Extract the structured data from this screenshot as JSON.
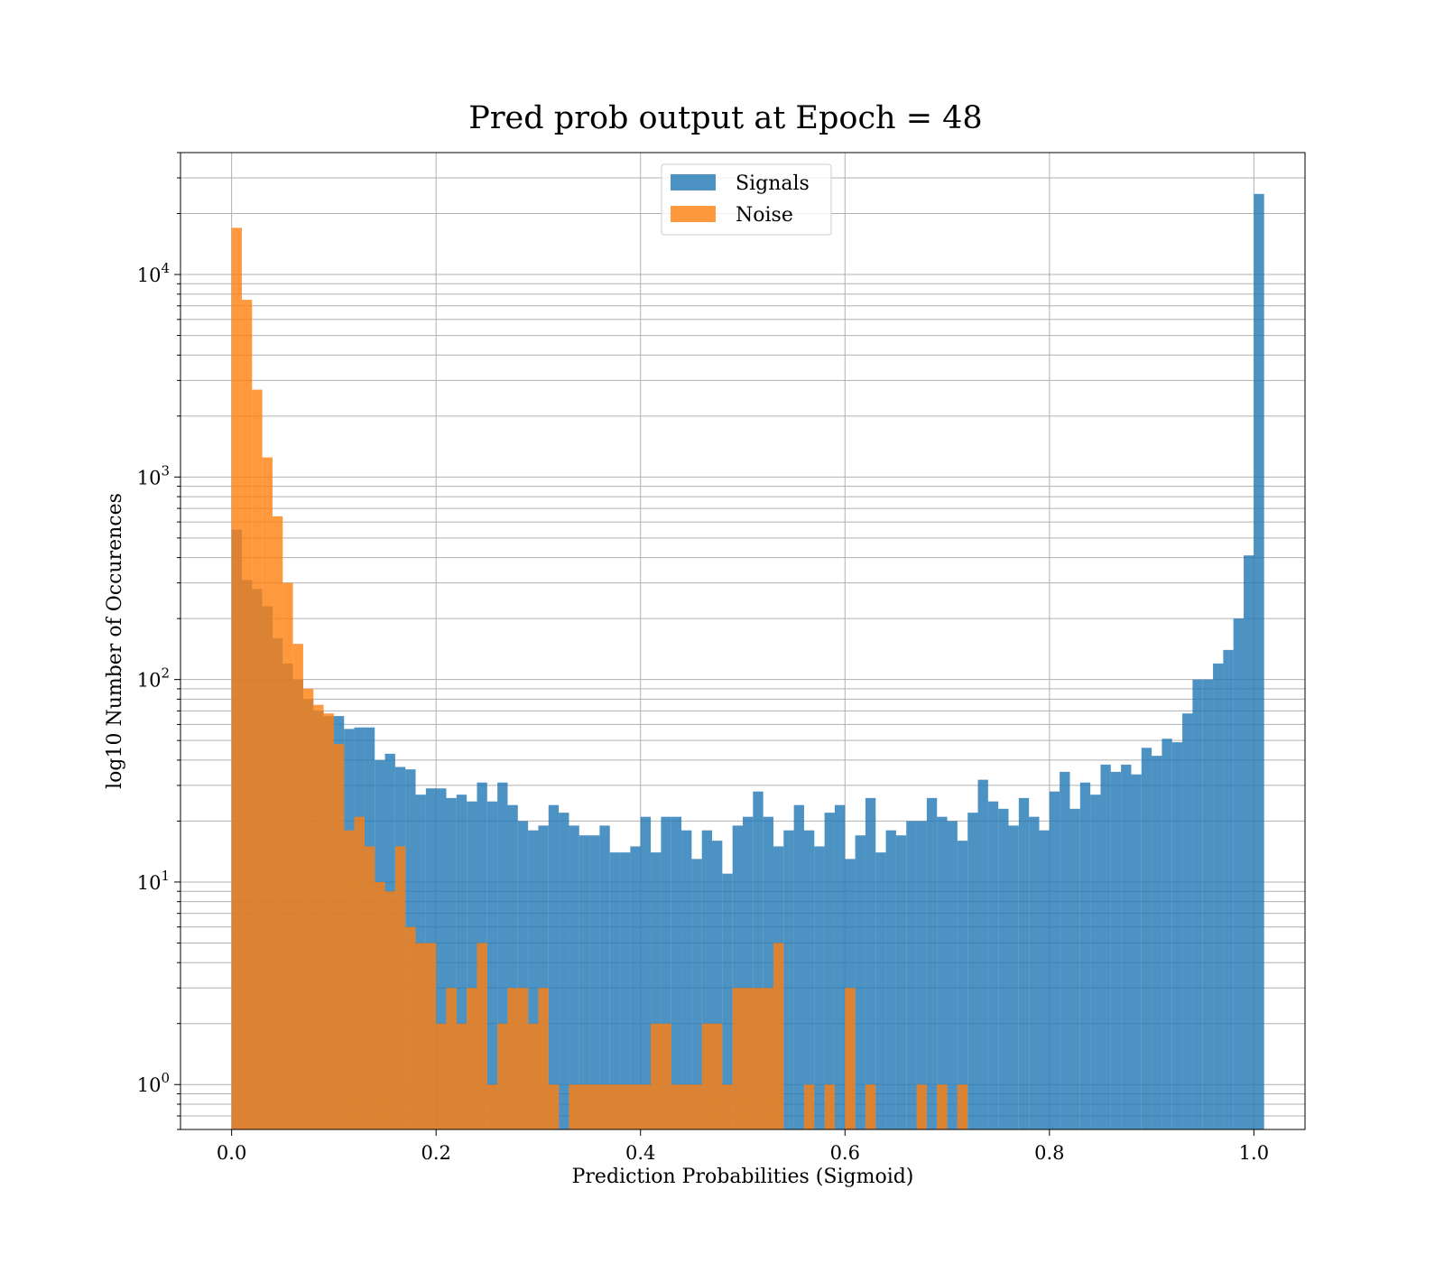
{
  "chart_data": {
    "type": "bar",
    "title": "Pred prob output at Epoch = 48",
    "xlabel": "Prediction Probabilities (Sigmoid)",
    "ylabel": "log10 Number of Occurences",
    "xlim": [
      -0.05,
      1.05
    ],
    "ylim": [
      0.6,
      40000
    ],
    "yscale": "log",
    "grid": true,
    "legend_position": "top-center",
    "x_ticks": [
      0.0,
      0.2,
      0.4,
      0.6,
      0.8,
      1.0
    ],
    "x_tick_labels": [
      "0.0",
      "0.2",
      "0.4",
      "0.6",
      "0.8",
      "1.0"
    ],
    "y_ticks": [
      1,
      10,
      100,
      1000,
      10000
    ],
    "y_tick_labels": [
      {
        "base": "10",
        "exp": "0"
      },
      {
        "base": "10",
        "exp": "1"
      },
      {
        "base": "10",
        "exp": "2"
      },
      {
        "base": "10",
        "exp": "3"
      },
      {
        "base": "10",
        "exp": "4"
      }
    ],
    "bin_start": 0.0,
    "bin_width": 0.01,
    "series": [
      {
        "name": "Signals",
        "color": "#1f77b4",
        "opacity": 0.8,
        "values": [
          550,
          310,
          280,
          230,
          160,
          120,
          100,
          80,
          70,
          66,
          66,
          57,
          58,
          58,
          40,
          43,
          37,
          36,
          27,
          29,
          29,
          26,
          27,
          25,
          31,
          25,
          31,
          24,
          20,
          18,
          19,
          24,
          22,
          19,
          17,
          17,
          19,
          14,
          14,
          15,
          21,
          14,
          21,
          21,
          18,
          13,
          18,
          16,
          11,
          19,
          21,
          28,
          21,
          15,
          18,
          24,
          18,
          15,
          22,
          24,
          13,
          17,
          26,
          14,
          18,
          17,
          20,
          20,
          26,
          21,
          20,
          16,
          22,
          32,
          25,
          23,
          19,
          26,
          21,
          18,
          28,
          35,
          23,
          31,
          27,
          38,
          35,
          38,
          34,
          46,
          42,
          51,
          49,
          68,
          100,
          100,
          120,
          140,
          200,
          410,
          25000
        ]
      },
      {
        "name": "Noise",
        "color": "#ff7f0e",
        "opacity": 0.8,
        "values": [
          17000,
          7500,
          2700,
          1250,
          640,
          300,
          150,
          90,
          75,
          68,
          48,
          18,
          21,
          15,
          10,
          9,
          15,
          6,
          5,
          5,
          2,
          3,
          2,
          3,
          5,
          1,
          2,
          3,
          3,
          2,
          3,
          1,
          0,
          1,
          1,
          1,
          1,
          1,
          1,
          1,
          1,
          2,
          2,
          1,
          1,
          1,
          2,
          2,
          1,
          3,
          3,
          3,
          3,
          5,
          0,
          0,
          1,
          0,
          1,
          0,
          3,
          0,
          1,
          0,
          0,
          0,
          0,
          1,
          0,
          1,
          0,
          1,
          0,
          0,
          0,
          0,
          0,
          0,
          0,
          0,
          0,
          0,
          0,
          0,
          0,
          0,
          0,
          0,
          0,
          0,
          0,
          0,
          0,
          0,
          0,
          0,
          0,
          0,
          0,
          0,
          0
        ]
      }
    ]
  }
}
